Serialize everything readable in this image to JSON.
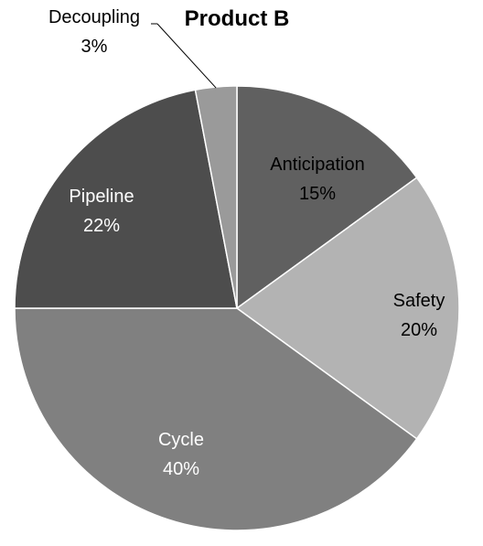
{
  "chart_data": {
    "type": "pie",
    "title": "Product B",
    "slices": [
      {
        "label": "Anticipation",
        "value": 15,
        "value_text": "15%",
        "color": "#606060",
        "text_color": "#000000"
      },
      {
        "label": "Safety",
        "value": 20,
        "value_text": "20%",
        "color": "#b3b3b3",
        "text_color": "#000000"
      },
      {
        "label": "Cycle",
        "value": 40,
        "value_text": "40%",
        "color": "#808080",
        "text_color": "#ffffff"
      },
      {
        "label": "Pipeline",
        "value": 22,
        "value_text": "22%",
        "color": "#4d4d4d",
        "text_color": "#ffffff"
      },
      {
        "label": "Decoupling",
        "value": 3,
        "value_text": "3%",
        "color": "#9a9a9a",
        "text_color": "#000000"
      }
    ],
    "start_angle_deg": 0,
    "direction": "clockwise",
    "legend": "none"
  }
}
